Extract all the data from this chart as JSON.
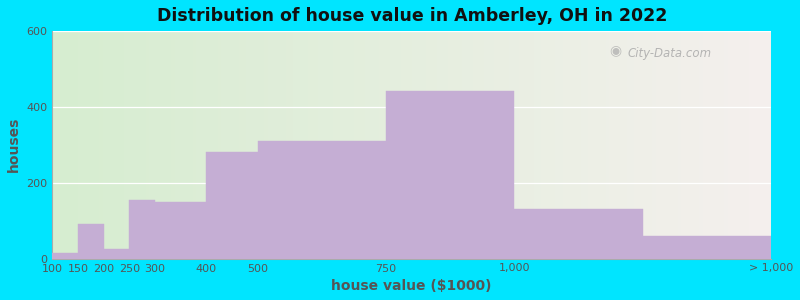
{
  "title": "Distribution of house value in Amberley, OH in 2022",
  "xlabel": "house value ($1000)",
  "ylabel": "houses",
  "bar_color": "#c5aed4",
  "bg_outer": "#00e5ff",
  "bg_left_color": "#d6edd0",
  "bg_right_color": "#f5f0ee",
  "ylim": [
    0,
    600
  ],
  "yticks": [
    0,
    200,
    400,
    600
  ],
  "watermark": "City-Data.com",
  "bin_edges": [
    100,
    150,
    200,
    250,
    300,
    400,
    500,
    750,
    1000,
    1250,
    1500
  ],
  "values": [
    15,
    90,
    25,
    155,
    150,
    280,
    310,
    440,
    130,
    60
  ],
  "tick_positions": [
    100,
    150,
    200,
    250,
    300,
    400,
    500,
    750,
    1000,
    1500
  ],
  "tick_labels": [
    "100",
    "150",
    "200",
    "250",
    "300",
    "400",
    "500",
    "750",
    "1,000",
    "> 1,000"
  ],
  "xmin": 100,
  "xmax": 1500
}
